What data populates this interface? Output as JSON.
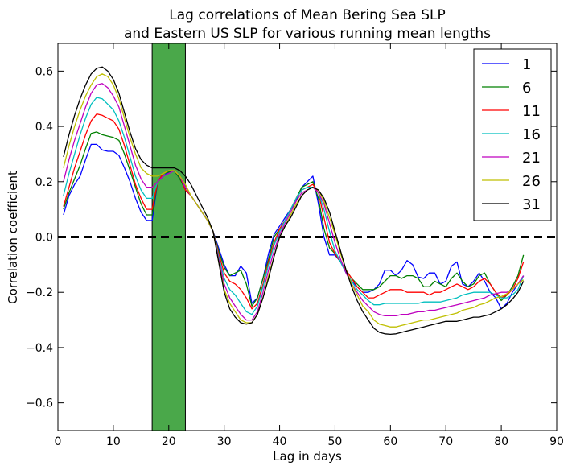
{
  "chart_data": {
    "type": "line",
    "title": "Lag correlations of Mean Bering Sea SLP",
    "subtitle": "and Eastern US SLP for various running mean lengths",
    "xlabel": "Lag in days",
    "ylabel": "Correlation coefficient",
    "xlim": [
      0,
      90
    ],
    "ylim": [
      -0.7,
      0.7
    ],
    "xticks": [
      0,
      10,
      20,
      30,
      40,
      50,
      60,
      70,
      80,
      90
    ],
    "yticks": [
      -0.6,
      -0.4,
      -0.2,
      0.0,
      0.2,
      0.4,
      0.6
    ],
    "ytick_labels": [
      "−0.6",
      "−0.4",
      "−0.2",
      "0.0",
      "0.2",
      "0.4",
      "0.6"
    ],
    "grid": false,
    "legend_position": "top-right",
    "zero_line": {
      "y": 0.0,
      "style": "dashed",
      "color": "#000000"
    },
    "shaded_band": {
      "x0": 17,
      "x1": 23,
      "color": "#4aa84a"
    },
    "x": [
      1,
      2,
      3,
      4,
      5,
      6,
      7,
      8,
      9,
      10,
      11,
      12,
      13,
      14,
      15,
      16,
      17,
      18,
      19,
      20,
      21,
      22,
      23,
      24,
      25,
      26,
      27,
      28,
      29,
      30,
      31,
      32,
      33,
      34,
      35,
      36,
      37,
      38,
      39,
      40,
      41,
      42,
      43,
      44,
      45,
      46,
      47,
      48,
      49,
      50,
      51,
      52,
      53,
      54,
      55,
      56,
      57,
      58,
      59,
      60,
      61,
      62,
      63,
      64,
      65,
      66,
      67,
      68,
      69,
      70,
      71,
      72,
      73,
      74,
      75,
      76,
      77,
      78,
      79,
      80,
      81,
      82,
      83,
      84
    ],
    "series": [
      {
        "name": "1",
        "color": "#0000ff",
        "values": [
          0.08,
          0.15,
          0.19,
          0.22,
          0.28,
          0.335,
          0.335,
          0.315,
          0.31,
          0.31,
          0.295,
          0.25,
          0.2,
          0.14,
          0.09,
          0.06,
          0.06,
          0.2,
          0.22,
          0.235,
          0.24,
          0.21,
          0.18,
          0.15,
          0.12,
          0.09,
          0.06,
          0.02,
          -0.04,
          -0.1,
          -0.14,
          -0.14,
          -0.105,
          -0.13,
          -0.24,
          -0.22,
          -0.15,
          -0.06,
          0.01,
          0.04,
          0.07,
          0.1,
          0.13,
          0.18,
          0.2,
          0.22,
          0.12,
          0.0,
          -0.065,
          -0.065,
          -0.09,
          -0.13,
          -0.16,
          -0.18,
          -0.2,
          -0.2,
          -0.19,
          -0.17,
          -0.12,
          -0.12,
          -0.14,
          -0.12,
          -0.085,
          -0.1,
          -0.145,
          -0.15,
          -0.13,
          -0.13,
          -0.17,
          -0.16,
          -0.105,
          -0.09,
          -0.17,
          -0.18,
          -0.16,
          -0.13,
          -0.16,
          -0.2,
          -0.22,
          -0.26,
          -0.24,
          -0.2,
          -0.17,
          -0.14
        ]
      },
      {
        "name": "6",
        "color": "#008000",
        "values": [
          0.1,
          0.16,
          0.21,
          0.26,
          0.32,
          0.375,
          0.38,
          0.37,
          0.365,
          0.36,
          0.35,
          0.3,
          0.24,
          0.18,
          0.12,
          0.08,
          0.08,
          0.2,
          0.23,
          0.235,
          0.24,
          0.21,
          0.17,
          0.15,
          0.12,
          0.09,
          0.06,
          0.02,
          -0.05,
          -0.11,
          -0.14,
          -0.13,
          -0.12,
          -0.17,
          -0.25,
          -0.22,
          -0.15,
          -0.08,
          0.0,
          0.03,
          0.06,
          0.1,
          0.14,
          0.18,
          0.19,
          0.2,
          0.14,
          0.03,
          -0.04,
          -0.06,
          -0.09,
          -0.12,
          -0.15,
          -0.17,
          -0.19,
          -0.19,
          -0.19,
          -0.18,
          -0.16,
          -0.14,
          -0.14,
          -0.15,
          -0.14,
          -0.14,
          -0.15,
          -0.18,
          -0.18,
          -0.16,
          -0.17,
          -0.18,
          -0.15,
          -0.13,
          -0.16,
          -0.18,
          -0.17,
          -0.14,
          -0.13,
          -0.17,
          -0.2,
          -0.23,
          -0.21,
          -0.18,
          -0.14,
          -0.065
        ]
      },
      {
        "name": "11",
        "color": "#ff0000",
        "values": [
          0.11,
          0.18,
          0.25,
          0.31,
          0.37,
          0.42,
          0.445,
          0.44,
          0.43,
          0.42,
          0.39,
          0.33,
          0.26,
          0.19,
          0.14,
          0.1,
          0.1,
          0.2,
          0.23,
          0.24,
          0.24,
          0.22,
          0.17,
          0.15,
          0.12,
          0.09,
          0.06,
          0.02,
          -0.06,
          -0.13,
          -0.16,
          -0.17,
          -0.19,
          -0.22,
          -0.26,
          -0.24,
          -0.17,
          -0.09,
          -0.02,
          0.03,
          0.06,
          0.1,
          0.14,
          0.17,
          0.18,
          0.19,
          0.16,
          0.07,
          -0.02,
          -0.06,
          -0.09,
          -0.12,
          -0.15,
          -0.18,
          -0.2,
          -0.22,
          -0.22,
          -0.21,
          -0.2,
          -0.19,
          -0.19,
          -0.19,
          -0.2,
          -0.2,
          -0.2,
          -0.2,
          -0.21,
          -0.2,
          -0.2,
          -0.19,
          -0.18,
          -0.17,
          -0.18,
          -0.19,
          -0.18,
          -0.16,
          -0.15,
          -0.17,
          -0.2,
          -0.22,
          -0.21,
          -0.19,
          -0.15,
          -0.09
        ]
      },
      {
        "name": "16",
        "color": "#00bfbf",
        "values": [
          0.15,
          0.23,
          0.3,
          0.37,
          0.43,
          0.48,
          0.505,
          0.5,
          0.48,
          0.46,
          0.42,
          0.36,
          0.29,
          0.22,
          0.17,
          0.14,
          0.14,
          0.2,
          0.22,
          0.23,
          0.24,
          0.22,
          0.18,
          0.15,
          0.12,
          0.09,
          0.06,
          0.02,
          -0.07,
          -0.15,
          -0.19,
          -0.21,
          -0.24,
          -0.27,
          -0.28,
          -0.25,
          -0.18,
          -0.1,
          -0.03,
          0.02,
          0.06,
          0.1,
          0.14,
          0.17,
          0.18,
          0.18,
          0.16,
          0.1,
          0.02,
          -0.05,
          -0.09,
          -0.13,
          -0.16,
          -0.19,
          -0.21,
          -0.23,
          -0.245,
          -0.245,
          -0.24,
          -0.24,
          -0.24,
          -0.24,
          -0.24,
          -0.24,
          -0.24,
          -0.235,
          -0.235,
          -0.235,
          -0.235,
          -0.23,
          -0.225,
          -0.22,
          -0.21,
          -0.205,
          -0.2,
          -0.2,
          -0.2,
          -0.2,
          -0.21,
          -0.22,
          -0.22,
          -0.21,
          -0.19,
          -0.14
        ]
      },
      {
        "name": "21",
        "color": "#bf00bf",
        "values": [
          0.2,
          0.28,
          0.35,
          0.41,
          0.47,
          0.52,
          0.55,
          0.555,
          0.54,
          0.51,
          0.47,
          0.4,
          0.33,
          0.26,
          0.21,
          0.18,
          0.18,
          0.2,
          0.22,
          0.23,
          0.24,
          0.22,
          0.18,
          0.15,
          0.12,
          0.09,
          0.06,
          0.02,
          -0.08,
          -0.17,
          -0.22,
          -0.25,
          -0.28,
          -0.3,
          -0.3,
          -0.27,
          -0.2,
          -0.12,
          -0.05,
          0.01,
          0.05,
          0.09,
          0.13,
          0.16,
          0.17,
          0.18,
          0.16,
          0.12,
          0.05,
          -0.02,
          -0.08,
          -0.13,
          -0.17,
          -0.2,
          -0.23,
          -0.25,
          -0.27,
          -0.28,
          -0.285,
          -0.285,
          -0.285,
          -0.28,
          -0.28,
          -0.275,
          -0.27,
          -0.27,
          -0.265,
          -0.265,
          -0.26,
          -0.255,
          -0.25,
          -0.245,
          -0.24,
          -0.235,
          -0.23,
          -0.225,
          -0.22,
          -0.21,
          -0.205,
          -0.2,
          -0.2,
          -0.19,
          -0.17,
          -0.14
        ]
      },
      {
        "name": "26",
        "color": "#bfbf00",
        "values": [
          0.25,
          0.33,
          0.4,
          0.46,
          0.51,
          0.55,
          0.58,
          0.59,
          0.58,
          0.55,
          0.5,
          0.43,
          0.36,
          0.3,
          0.25,
          0.23,
          0.22,
          0.22,
          0.23,
          0.24,
          0.24,
          0.22,
          0.19,
          0.15,
          0.12,
          0.09,
          0.06,
          0.02,
          -0.09,
          -0.19,
          -0.24,
          -0.27,
          -0.3,
          -0.31,
          -0.31,
          -0.28,
          -0.22,
          -0.14,
          -0.07,
          0.0,
          0.04,
          0.08,
          0.12,
          0.15,
          0.17,
          0.18,
          0.17,
          0.13,
          0.07,
          0.01,
          -0.06,
          -0.12,
          -0.17,
          -0.21,
          -0.25,
          -0.27,
          -0.3,
          -0.315,
          -0.32,
          -0.325,
          -0.325,
          -0.32,
          -0.315,
          -0.31,
          -0.305,
          -0.3,
          -0.3,
          -0.295,
          -0.29,
          -0.285,
          -0.28,
          -0.275,
          -0.265,
          -0.26,
          -0.255,
          -0.245,
          -0.24,
          -0.23,
          -0.22,
          -0.215,
          -0.205,
          -0.19,
          -0.17,
          -0.155
        ]
      },
      {
        "name": "31",
        "color": "#000000",
        "values": [
          0.29,
          0.37,
          0.44,
          0.5,
          0.55,
          0.59,
          0.61,
          0.615,
          0.6,
          0.57,
          0.52,
          0.45,
          0.38,
          0.32,
          0.28,
          0.26,
          0.25,
          0.25,
          0.25,
          0.25,
          0.25,
          0.24,
          0.22,
          0.19,
          0.15,
          0.11,
          0.07,
          0.02,
          -0.09,
          -0.2,
          -0.26,
          -0.29,
          -0.31,
          -0.315,
          -0.31,
          -0.28,
          -0.22,
          -0.15,
          -0.07,
          0.0,
          0.04,
          0.07,
          0.11,
          0.15,
          0.17,
          0.18,
          0.17,
          0.14,
          0.09,
          0.02,
          -0.05,
          -0.12,
          -0.18,
          -0.23,
          -0.27,
          -0.3,
          -0.33,
          -0.345,
          -0.35,
          -0.352,
          -0.35,
          -0.345,
          -0.34,
          -0.335,
          -0.33,
          -0.325,
          -0.32,
          -0.315,
          -0.31,
          -0.305,
          -0.305,
          -0.305,
          -0.3,
          -0.295,
          -0.29,
          -0.29,
          -0.285,
          -0.28,
          -0.27,
          -0.26,
          -0.245,
          -0.225,
          -0.2,
          -0.16
        ]
      }
    ]
  }
}
